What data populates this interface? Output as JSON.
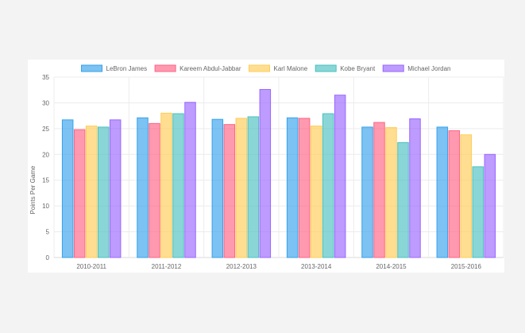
{
  "chart_data": {
    "type": "bar",
    "title": "",
    "xlabel": "",
    "ylabel": "Points Per Game",
    "ylim": [
      0,
      35
    ],
    "yticks": [
      0,
      5,
      10,
      15,
      20,
      25,
      30,
      35
    ],
    "grid": true,
    "legend_position": "top",
    "categories": [
      "2010-2011",
      "2011-2012",
      "2012-2013",
      "2013-2014",
      "2014-2015",
      "2015-2016"
    ],
    "series": [
      {
        "name": "LeBron James",
        "color": "#36a2eb",
        "values": [
          26.7,
          27.1,
          26.8,
          27.1,
          25.3,
          25.3
        ]
      },
      {
        "name": "Kareem Abdul-Jabbar",
        "color": "#ff6384",
        "values": [
          24.8,
          26.0,
          25.8,
          27.0,
          26.2,
          24.6
        ]
      },
      {
        "name": "Karl Malone",
        "color": "#ffcd56",
        "values": [
          25.5,
          28.0,
          27.0,
          25.5,
          25.2,
          23.8
        ]
      },
      {
        "name": "Kobe Bryant",
        "color": "#4bc0c0",
        "values": [
          25.3,
          27.9,
          27.3,
          27.9,
          22.3,
          17.6
        ]
      },
      {
        "name": "Michael Jordan",
        "color": "#9966ff",
        "values": [
          26.7,
          30.1,
          32.6,
          31.5,
          26.9,
          20.0
        ]
      }
    ]
  }
}
